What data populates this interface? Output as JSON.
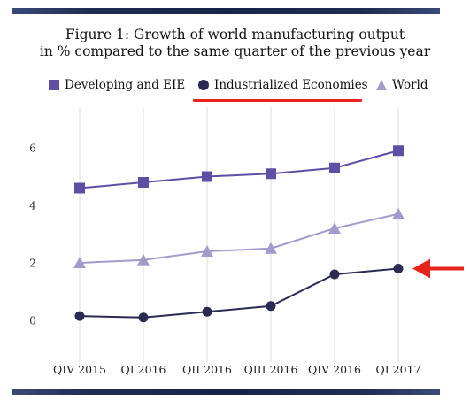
{
  "title_line1": "Figure 1: Growth of world manufacturing output",
  "title_line2": "in % compared to the same quarter of the previous year",
  "colors": {
    "developing": "#5e4ea4",
    "industrialized": "#2a2a52",
    "world": "#a49bcd",
    "grid": "#dcdcdc",
    "highlight": "#e8231c",
    "band": "#1f2b52"
  },
  "legend": [
    {
      "label": "Developing and EIE",
      "marker": "square",
      "color_key": "developing"
    },
    {
      "label": "Industrialized Economies",
      "marker": "circle",
      "color_key": "industrialized"
    },
    {
      "label": "World",
      "marker": "triangle",
      "color_key": "world"
    }
  ],
  "chart_data": {
    "type": "line",
    "title": "Figure 1: Growth of world manufacturing output in % compared to the same quarter of the previous year",
    "categories": [
      "QIV 2015",
      "QI 2016",
      "QII 2016",
      "QIII 2016",
      "QIV 2016",
      "QI 2017"
    ],
    "series": [
      {
        "name": "Developing and EIE",
        "values": [
          4.6,
          4.8,
          5.0,
          5.1,
          5.3,
          5.9
        ],
        "marker": "square",
        "color": "#5e4ea4"
      },
      {
        "name": "Industrialized Economies",
        "values": [
          0.15,
          0.1,
          0.3,
          0.5,
          1.6,
          1.8
        ],
        "marker": "circle",
        "color": "#2a2a52"
      },
      {
        "name": "World",
        "values": [
          2.0,
          2.1,
          2.4,
          2.5,
          3.2,
          3.7
        ],
        "marker": "triangle",
        "color": "#a49bcd"
      }
    ],
    "ylim": [
      -1,
      7
    ],
    "yticks": [
      0,
      2,
      4,
      6
    ],
    "grid": "vertical",
    "legend_position": "top",
    "annotation": "red arrow pointing at the last Industrialized Economies point; red underline under its legend entry"
  }
}
